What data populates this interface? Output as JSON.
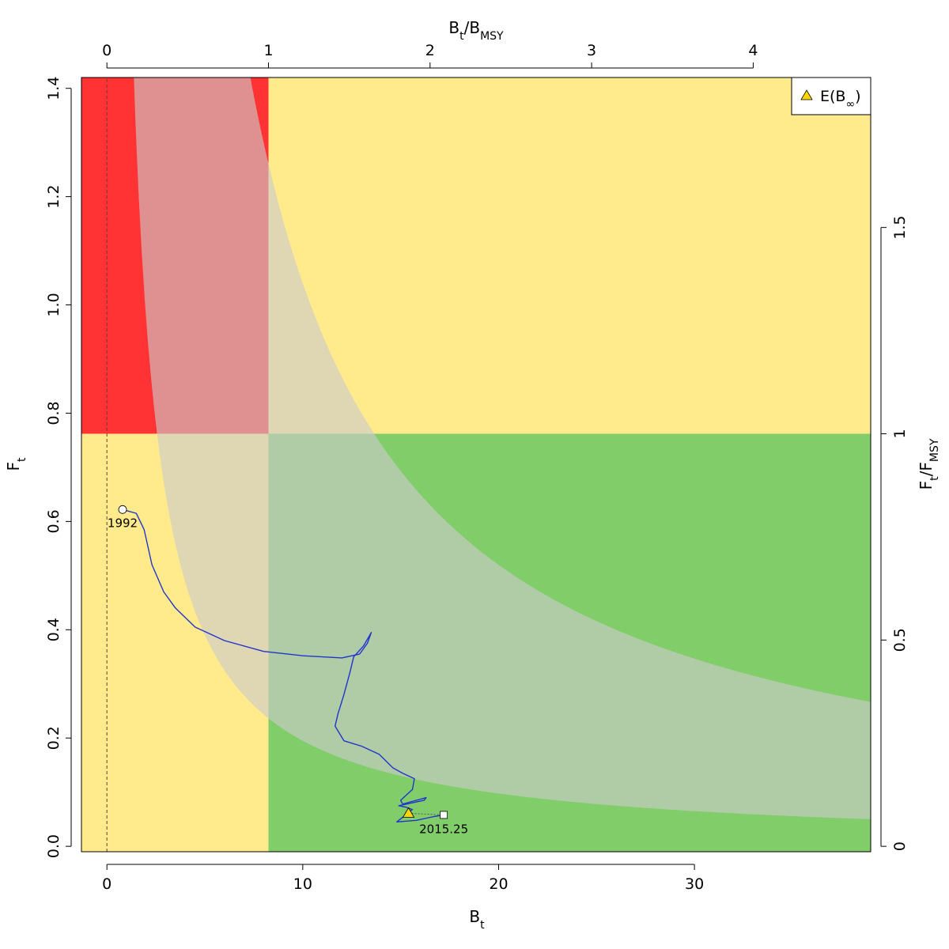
{
  "chart_data": {
    "type": "scatter",
    "xlabel": "B",
    "xlabel_sub": "t",
    "ylabel": "F",
    "ylabel_sub": "t",
    "top_axis_label": {
      "a": "B",
      "a_sub": "t",
      "sep": "/",
      "b": "B",
      "b_sub": "MSY"
    },
    "right_axis_label": {
      "a": "F",
      "a_sub": "t",
      "sep": "/",
      "b": "F",
      "b_sub": "MSY"
    },
    "xlim": [
      -1.3,
      39.0
    ],
    "ylim": [
      -0.01,
      1.42
    ],
    "x_ticks": [
      0,
      10,
      20,
      30
    ],
    "x_tick_labels": [
      "0",
      "10",
      "20",
      "30"
    ],
    "y_ticks": [
      0.0,
      0.2,
      0.4,
      0.6,
      0.8,
      1.0,
      1.2,
      1.4
    ],
    "y_tick_labels": [
      "0.0",
      "0.2",
      "0.4",
      "0.6",
      "0.8",
      "1.0",
      "1.2",
      "1.4"
    ],
    "top_ticks": [
      0,
      1,
      2,
      3,
      4
    ],
    "top_tick_labels": [
      "0",
      "1",
      "2",
      "3",
      "4"
    ],
    "right_ticks": [
      0,
      0.5,
      1,
      1.5
    ],
    "right_tick_labels": [
      "0",
      "0.5",
      "1",
      "1.5"
    ],
    "Bmsy": 8.25,
    "Fmsy": 0.762,
    "msy_curve_k": 6.5,
    "ci_lower_k": 1.95,
    "ci_upper_k": 10.4,
    "colors": {
      "red": "#ff3333",
      "yellow": "#ffeb8c",
      "green": "#80cd69",
      "band": "#cccccc",
      "band_opacity": 0.62,
      "trajectory": "#2233cc",
      "marker_fill": "#ffd700"
    },
    "trajectory": {
      "x": [
        0.8,
        1.5,
        1.9,
        2.3,
        2.9,
        3.5,
        4.5,
        6.0,
        8.0,
        10.0,
        12.0,
        12.9,
        13.3,
        13.5,
        13.1,
        12.6,
        12.4,
        12.1,
        11.8,
        11.65,
        12.1,
        13.0,
        13.9,
        14.6,
        15.1,
        15.7,
        15.6,
        15.0,
        15.1,
        15.3,
        16.3,
        16.2,
        14.9,
        15.3,
        15.6,
        14.8,
        15.8,
        16.7,
        17.2
      ],
      "y": [
        0.622,
        0.615,
        0.585,
        0.52,
        0.47,
        0.44,
        0.405,
        0.38,
        0.36,
        0.352,
        0.348,
        0.355,
        0.375,
        0.395,
        0.37,
        0.35,
        0.32,
        0.28,
        0.245,
        0.222,
        0.195,
        0.185,
        0.17,
        0.145,
        0.135,
        0.125,
        0.105,
        0.085,
        0.078,
        0.08,
        0.09,
        0.085,
        0.075,
        0.072,
        0.068,
        0.045,
        0.048,
        0.055,
        0.058
      ]
    },
    "start_point": {
      "label": "1992",
      "x": 0.8,
      "y": 0.622
    },
    "end_point": {
      "label": "2015.25",
      "x": 17.2,
      "y": 0.058
    },
    "expected_point": {
      "x": 15.4,
      "y": 0.061
    },
    "legend": {
      "label": "E(B",
      "label_sub": "∞",
      "label_end": ")",
      "position": "top-right",
      "marker": "triangle"
    }
  }
}
